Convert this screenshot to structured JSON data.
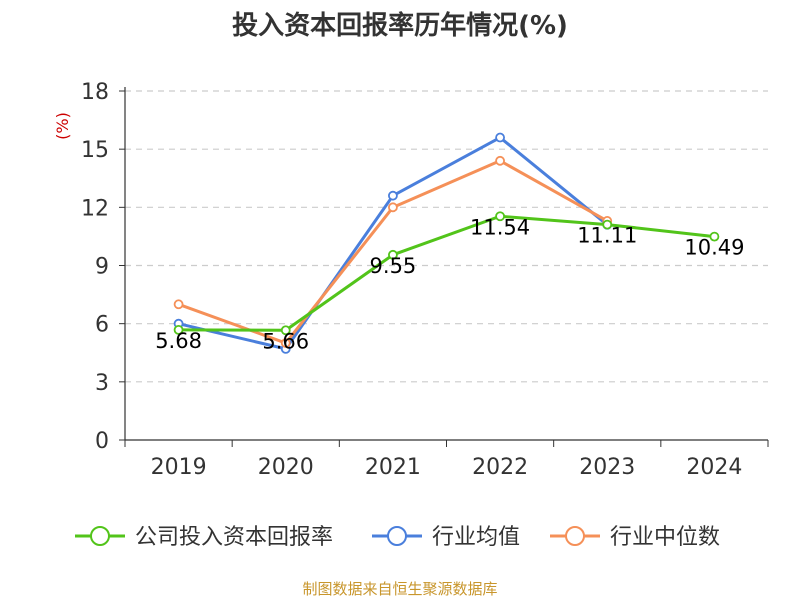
{
  "chart_data": {
    "type": "line",
    "title": "投入资本回报率历年情况(%)",
    "ylabel": "(%)",
    "xlabel": "",
    "categories": [
      "2019",
      "2020",
      "2021",
      "2022",
      "2023",
      "2024"
    ],
    "ylim": [
      0,
      18
    ],
    "yticks": [
      0,
      3,
      6,
      9,
      12,
      15,
      18
    ],
    "grid": true,
    "legend_position": "bottom",
    "series": [
      {
        "name": "公司投入资本回报率",
        "color": "#52c41a",
        "values": [
          5.68,
          5.66,
          9.55,
          11.54,
          11.11,
          10.49
        ],
        "labels": [
          "5.68",
          "5.66",
          "9.55",
          "11.54",
          "11.11",
          "10.49"
        ]
      },
      {
        "name": "行业均值",
        "color": "#4a7fdc",
        "values": [
          6.0,
          4.7,
          12.6,
          15.6,
          11.1,
          null
        ]
      },
      {
        "name": "行业中位数",
        "color": "#f59058",
        "values": [
          7.0,
          5.0,
          12.0,
          14.4,
          11.3,
          null
        ]
      }
    ]
  },
  "source_text": "制图数据来自恒生聚源数据库"
}
